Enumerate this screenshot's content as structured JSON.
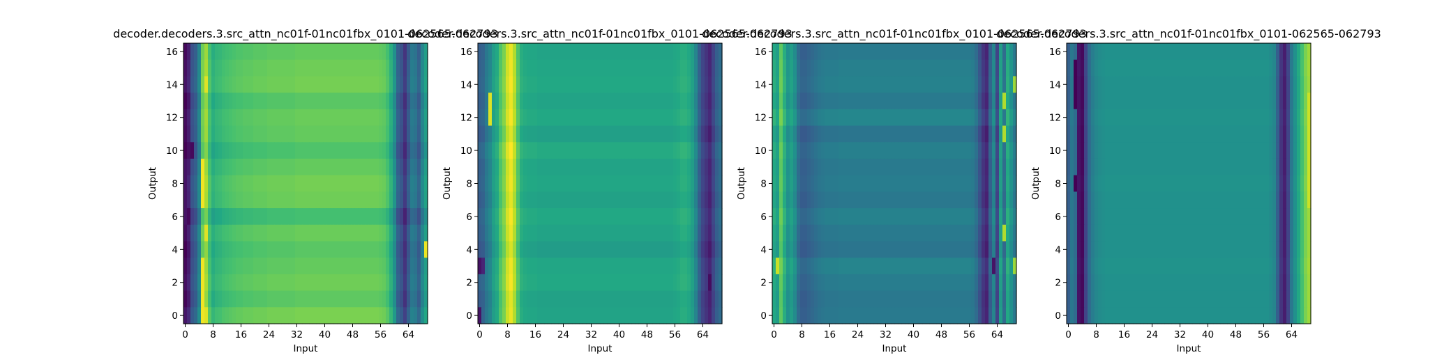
{
  "figure": {
    "background": "#ffffff",
    "colormap": "viridis"
  },
  "chart_data": [
    {
      "type": "heatmap",
      "title": "decoder.decoders.3.src_attn_nc01f-01nc01fbx_0101-062565-062793",
      "xlabel": "Input",
      "ylabel": "Output",
      "x_ticks": [
        0,
        8,
        16,
        24,
        32,
        40,
        48,
        56,
        64
      ],
      "y_ticks": [
        0,
        2,
        4,
        6,
        8,
        10,
        12,
        14,
        16
      ],
      "x_range": [
        -0.5,
        69.5
      ],
      "y_range": [
        16.5,
        -0.5
      ],
      "n_cols": 70,
      "n_rows": 17,
      "column_profile": [
        0.02,
        0.08,
        0.25,
        0.3,
        0.45,
        0.78,
        0.85,
        0.7,
        0.62,
        0.65,
        0.66,
        0.68,
        0.69,
        0.7,
        0.71,
        0.72,
        0.72,
        0.73,
        0.73,
        0.73,
        0.74,
        0.74,
        0.74,
        0.74,
        0.75,
        0.75,
        0.75,
        0.75,
        0.75,
        0.75,
        0.75,
        0.75,
        0.76,
        0.76,
        0.76,
        0.76,
        0.76,
        0.76,
        0.76,
        0.76,
        0.76,
        0.76,
        0.76,
        0.76,
        0.76,
        0.76,
        0.76,
        0.76,
        0.76,
        0.76,
        0.76,
        0.76,
        0.76,
        0.76,
        0.76,
        0.76,
        0.75,
        0.74,
        0.7,
        0.62,
        0.5,
        0.3,
        0.25,
        0.15,
        0.28,
        0.4,
        0.38,
        0.3,
        0.45,
        0.55
      ],
      "row_offsets": [
        0.0,
        0.02,
        0.03,
        -0.02,
        0.01,
        0.0,
        -0.04,
        0.0,
        0.03,
        0.02,
        -0.06,
        0.01,
        -0.02,
        0.0,
        0.02,
        -0.01,
        0.04
      ],
      "features": [
        {
          "col": 5,
          "rows": [
            7,
            8,
            9,
            13,
            14,
            15,
            16
          ],
          "value": 0.98
        },
        {
          "col": 6,
          "rows": [
            2,
            11,
            16
          ],
          "value": 0.95
        },
        {
          "col": 2,
          "rows": [
            6
          ],
          "value": 0.02
        },
        {
          "col": 0,
          "rows": [
            7,
            8,
            9,
            10
          ],
          "value": 0.05
        },
        {
          "col": 69,
          "rows": [
            12
          ],
          "value": 0.97
        }
      ]
    },
    {
      "type": "heatmap",
      "title": "decoder.decoders.3.src_attn_nc01f-01nc01fbx_0101-062565-062793",
      "xlabel": "Input",
      "ylabel": "Output",
      "x_ticks": [
        0,
        8,
        16,
        24,
        32,
        40,
        48,
        56,
        64
      ],
      "y_ticks": [
        0,
        2,
        4,
        6,
        8,
        10,
        12,
        14,
        16
      ],
      "x_range": [
        -0.5,
        69.5
      ],
      "y_range": [
        16.5,
        -0.5
      ],
      "n_cols": 70,
      "n_rows": 17,
      "column_profile": [
        0.3,
        0.32,
        0.4,
        0.45,
        0.55,
        0.6,
        0.72,
        0.8,
        0.92,
        0.97,
        0.88,
        0.72,
        0.62,
        0.6,
        0.59,
        0.59,
        0.59,
        0.58,
        0.58,
        0.58,
        0.58,
        0.58,
        0.58,
        0.58,
        0.58,
        0.58,
        0.58,
        0.58,
        0.58,
        0.58,
        0.58,
        0.58,
        0.58,
        0.58,
        0.58,
        0.58,
        0.58,
        0.58,
        0.58,
        0.58,
        0.58,
        0.58,
        0.58,
        0.58,
        0.58,
        0.58,
        0.58,
        0.58,
        0.58,
        0.58,
        0.58,
        0.58,
        0.58,
        0.58,
        0.58,
        0.58,
        0.59,
        0.6,
        0.62,
        0.62,
        0.6,
        0.55,
        0.45,
        0.3,
        0.2,
        0.15,
        0.1,
        0.2,
        0.3,
        0.35
      ],
      "row_offsets": [
        0.0,
        0.01,
        0.02,
        0.0,
        0.02,
        -0.02,
        0.03,
        0.0,
        0.01,
        -0.01,
        0.02,
        0.0,
        -0.03,
        0.01,
        0.02,
        -0.01,
        0.0
      ],
      "features": [
        {
          "col": 0,
          "rows": [
            13,
            16
          ],
          "value": 0.05
        },
        {
          "col": 1,
          "rows": [
            13
          ],
          "value": 0.1
        },
        {
          "col": 3,
          "rows": [
            3,
            4
          ],
          "value": 0.95
        },
        {
          "col": 66,
          "rows": [
            14
          ],
          "value": 0.03
        }
      ]
    },
    {
      "type": "heatmap",
      "title": "decoder.decoders.3.src_attn_nc01f-01nc01fbx_0101-062565-062793",
      "xlabel": "Input",
      "ylabel": "Output",
      "x_ticks": [
        0,
        8,
        16,
        24,
        32,
        40,
        48,
        56,
        64
      ],
      "y_ticks": [
        0,
        2,
        4,
        6,
        8,
        10,
        12,
        14,
        16
      ],
      "x_range": [
        -0.5,
        69.5
      ],
      "y_range": [
        16.5,
        -0.5
      ],
      "n_cols": 70,
      "n_rows": 17,
      "column_profile": [
        0.6,
        0.55,
        0.75,
        0.62,
        0.5,
        0.55,
        0.48,
        0.35,
        0.3,
        0.3,
        0.32,
        0.34,
        0.36,
        0.38,
        0.39,
        0.4,
        0.4,
        0.4,
        0.4,
        0.41,
        0.41,
        0.41,
        0.41,
        0.41,
        0.41,
        0.41,
        0.41,
        0.41,
        0.41,
        0.41,
        0.41,
        0.41,
        0.41,
        0.41,
        0.41,
        0.41,
        0.41,
        0.41,
        0.41,
        0.41,
        0.41,
        0.41,
        0.41,
        0.41,
        0.41,
        0.41,
        0.41,
        0.41,
        0.41,
        0.41,
        0.41,
        0.41,
        0.41,
        0.41,
        0.41,
        0.41,
        0.41,
        0.4,
        0.35,
        0.25,
        0.15,
        0.1,
        0.3,
        0.45,
        0.2,
        0.55,
        0.35,
        0.6,
        0.5,
        0.4
      ],
      "row_offsets": [
        0.0,
        0.02,
        0.03,
        0.0,
        0.05,
        -0.02,
        0.02,
        0.0,
        0.01,
        -0.01,
        0.03,
        0.0,
        -0.02,
        0.04,
        0.01,
        -0.01,
        0.0
      ],
      "features": [
        {
          "col": 1,
          "rows": [
            13
          ],
          "value": 0.92
        },
        {
          "col": 63,
          "rows": [
            13
          ],
          "value": 0.05
        },
        {
          "col": 66,
          "rows": [
            3,
            5,
            11
          ],
          "value": 0.88
        },
        {
          "col": 69,
          "rows": [
            2,
            13
          ],
          "value": 0.85
        }
      ]
    },
    {
      "type": "heatmap",
      "title": "decoder.decoders.3.src_attn_nc01f-01nc01fbx_0101-062565-062793",
      "xlabel": "Input",
      "ylabel": "Output",
      "x_ticks": [
        0,
        8,
        16,
        24,
        32,
        40,
        48,
        56,
        64
      ],
      "y_ticks": [
        0,
        2,
        4,
        6,
        8,
        10,
        12,
        14,
        16
      ],
      "x_range": [
        -0.5,
        69.5
      ],
      "y_range": [
        16.5,
        -0.5
      ],
      "n_cols": 70,
      "n_rows": 17,
      "column_profile": [
        0.3,
        0.4,
        0.35,
        0.05,
        0.02,
        0.2,
        0.35,
        0.42,
        0.46,
        0.48,
        0.49,
        0.5,
        0.5,
        0.5,
        0.5,
        0.5,
        0.5,
        0.5,
        0.5,
        0.5,
        0.5,
        0.5,
        0.5,
        0.5,
        0.5,
        0.5,
        0.5,
        0.5,
        0.5,
        0.5,
        0.5,
        0.5,
        0.5,
        0.5,
        0.5,
        0.5,
        0.5,
        0.5,
        0.5,
        0.5,
        0.5,
        0.5,
        0.5,
        0.5,
        0.5,
        0.5,
        0.5,
        0.5,
        0.5,
        0.5,
        0.5,
        0.5,
        0.5,
        0.5,
        0.5,
        0.5,
        0.5,
        0.5,
        0.48,
        0.45,
        0.3,
        0.15,
        0.08,
        0.2,
        0.4,
        0.5,
        0.6,
        0.7,
        0.8,
        0.85
      ],
      "row_offsets": [
        0.0,
        0.01,
        0.0,
        0.0,
        0.01,
        0.0,
        0.0,
        0.0,
        0.01,
        0.0,
        0.0,
        0.0,
        0.0,
        0.01,
        0.0,
        0.0,
        0.0
      ],
      "features": [
        {
          "col": 69,
          "rows": [
            3,
            4,
            5,
            6,
            7,
            8,
            9
          ],
          "value": 0.92
        },
        {
          "col": 2,
          "rows": [
            1,
            2,
            3,
            8
          ],
          "value": 0.0
        }
      ]
    }
  ]
}
